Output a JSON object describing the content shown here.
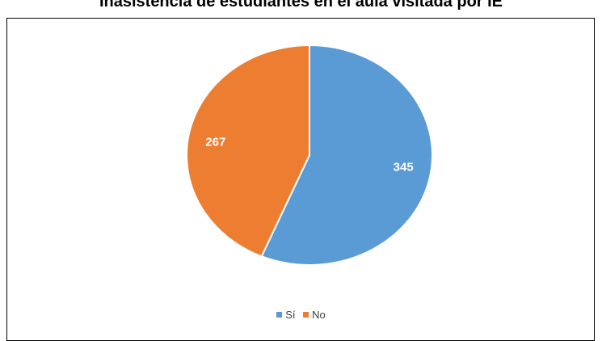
{
  "chart_data": {
    "type": "pie",
    "title": "Inasistencia de estudiantes en el aula visitada por IE",
    "categories": [
      "Sí",
      "No"
    ],
    "values": [
      345,
      267
    ],
    "colors": [
      "#5b9bd5",
      "#ed7d31"
    ],
    "data_labels": [
      "345",
      "267"
    ],
    "legend_position": "bottom"
  }
}
